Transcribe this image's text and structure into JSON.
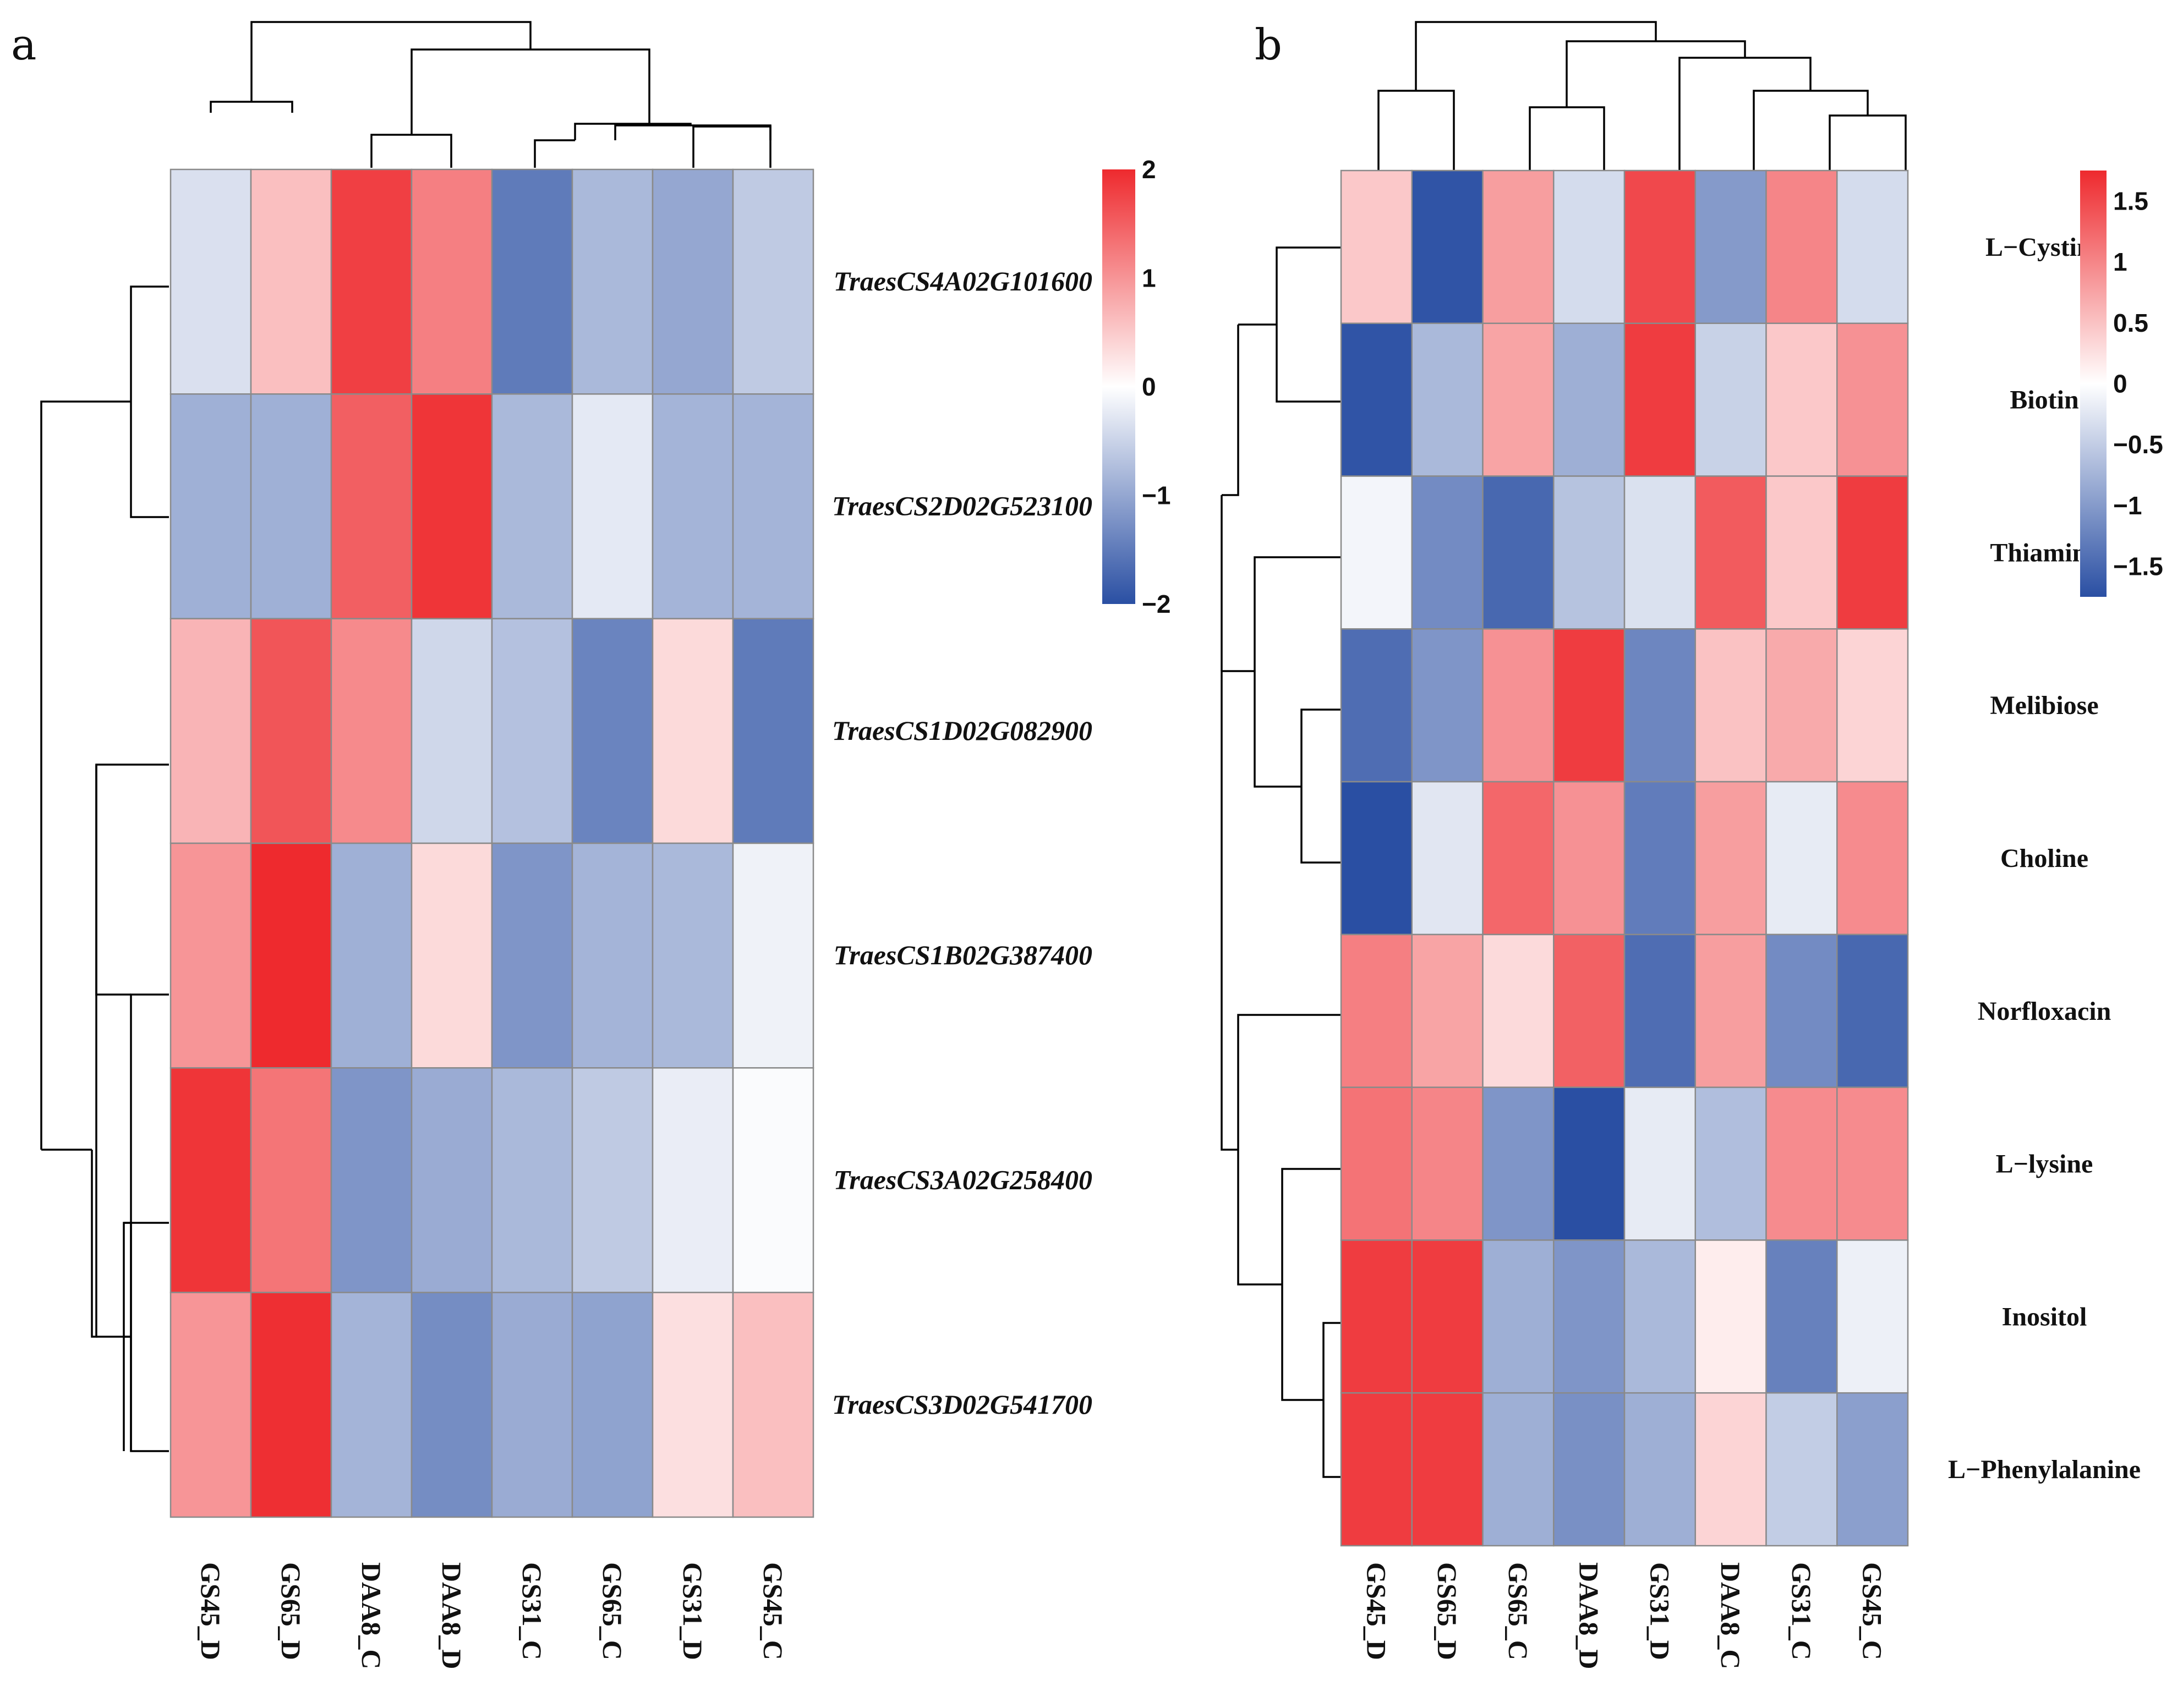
{
  "chart_data": [
    {
      "type": "heatmap",
      "panel": "a",
      "columns": [
        "GS45_D",
        "GS65_D",
        "DAA8_C",
        "DAA8_D",
        "GS31_C",
        "GS65_C",
        "GS31_D",
        "GS45_C"
      ],
      "rows": [
        "TraesCS4A02G101600",
        "TraesCS2D02G523100",
        "TraesCS1D02G082900",
        "TraesCS1B02G387400",
        "TraesCS3A02G258400",
        "TraesCS3D02G541700"
      ],
      "values": [
        [
          -0.35,
          0.6,
          1.8,
          1.2,
          -1.5,
          -0.8,
          -1.0,
          -0.6
        ],
        [
          -0.9,
          -0.9,
          1.5,
          1.9,
          -0.8,
          -0.25,
          -0.85,
          -0.85
        ],
        [
          0.7,
          1.6,
          1.1,
          -0.45,
          -0.7,
          -1.4,
          0.35,
          -1.5
        ],
        [
          1.0,
          2.0,
          -0.9,
          0.35,
          -1.2,
          -0.85,
          -0.8,
          -0.15
        ],
        [
          1.9,
          1.3,
          -1.2,
          -0.95,
          -0.8,
          -0.6,
          -0.2,
          -0.05
        ],
        [
          1.0,
          1.95,
          -0.85,
          -1.3,
          -0.95,
          -1.05,
          0.3,
          0.6
        ]
      ],
      "scale": {
        "min": -2,
        "max": 2,
        "ticks": [
          2,
          1,
          0,
          -1,
          -2
        ],
        "tick_labels": [
          "2",
          "1",
          "0",
          "−1",
          "−2"
        ]
      },
      "colors": {
        "low": "#2a4fa3",
        "mid": "#ffffff",
        "high": "#ee2a2e"
      }
    },
    {
      "type": "heatmap",
      "panel": "b",
      "columns": [
        "GS45_D",
        "GS65_D",
        "GS65_C",
        "DAA8_D",
        "GS31_D",
        "DAA8_C",
        "GS31_C",
        "GS45_C"
      ],
      "rows": [
        "L−Cystine",
        "Biotin",
        "Thiamine",
        "Melibiose",
        "Choline",
        "Norfloxacin",
        "L−lysine",
        "Inositol",
        "L−Phenylalanine"
      ],
      "values": [
        [
          0.45,
          -1.7,
          0.8,
          -0.35,
          1.5,
          -1.0,
          1.0,
          -0.35
        ],
        [
          -1.7,
          -0.7,
          0.75,
          -0.8,
          1.6,
          -0.45,
          0.45,
          0.9
        ],
        [
          -0.1,
          -1.15,
          -1.5,
          -0.6,
          -0.3,
          1.35,
          0.45,
          1.6
        ],
        [
          -1.45,
          -1.05,
          0.9,
          1.6,
          -1.2,
          0.5,
          0.7,
          0.35
        ],
        [
          -1.75,
          -0.25,
          1.25,
          0.9,
          -1.3,
          0.8,
          -0.2,
          0.95
        ],
        [
          1.05,
          0.75,
          0.3,
          1.3,
          -1.45,
          0.8,
          -1.15,
          -1.5
        ],
        [
          1.15,
          1.0,
          -1.05,
          -1.75,
          -0.2,
          -0.65,
          0.95,
          0.95
        ],
        [
          1.6,
          1.6,
          -0.8,
          -1.05,
          -0.7,
          0.15,
          -1.25,
          -0.15
        ],
        [
          1.6,
          1.6,
          -0.8,
          -1.1,
          -0.8,
          0.35,
          -0.5,
          -0.95
        ]
      ],
      "scale": {
        "min": -1.75,
        "max": 1.75,
        "ticks": [
          1.5,
          1,
          0.5,
          0,
          -0.5,
          -1,
          -1.5
        ],
        "tick_labels": [
          "1.5",
          "1",
          "0.5",
          "0",
          "−0.5",
          "−1",
          "−1.5"
        ]
      },
      "colors": {
        "low": "#2a4fa3",
        "mid": "#ffffff",
        "high": "#ee2a2e"
      }
    }
  ]
}
